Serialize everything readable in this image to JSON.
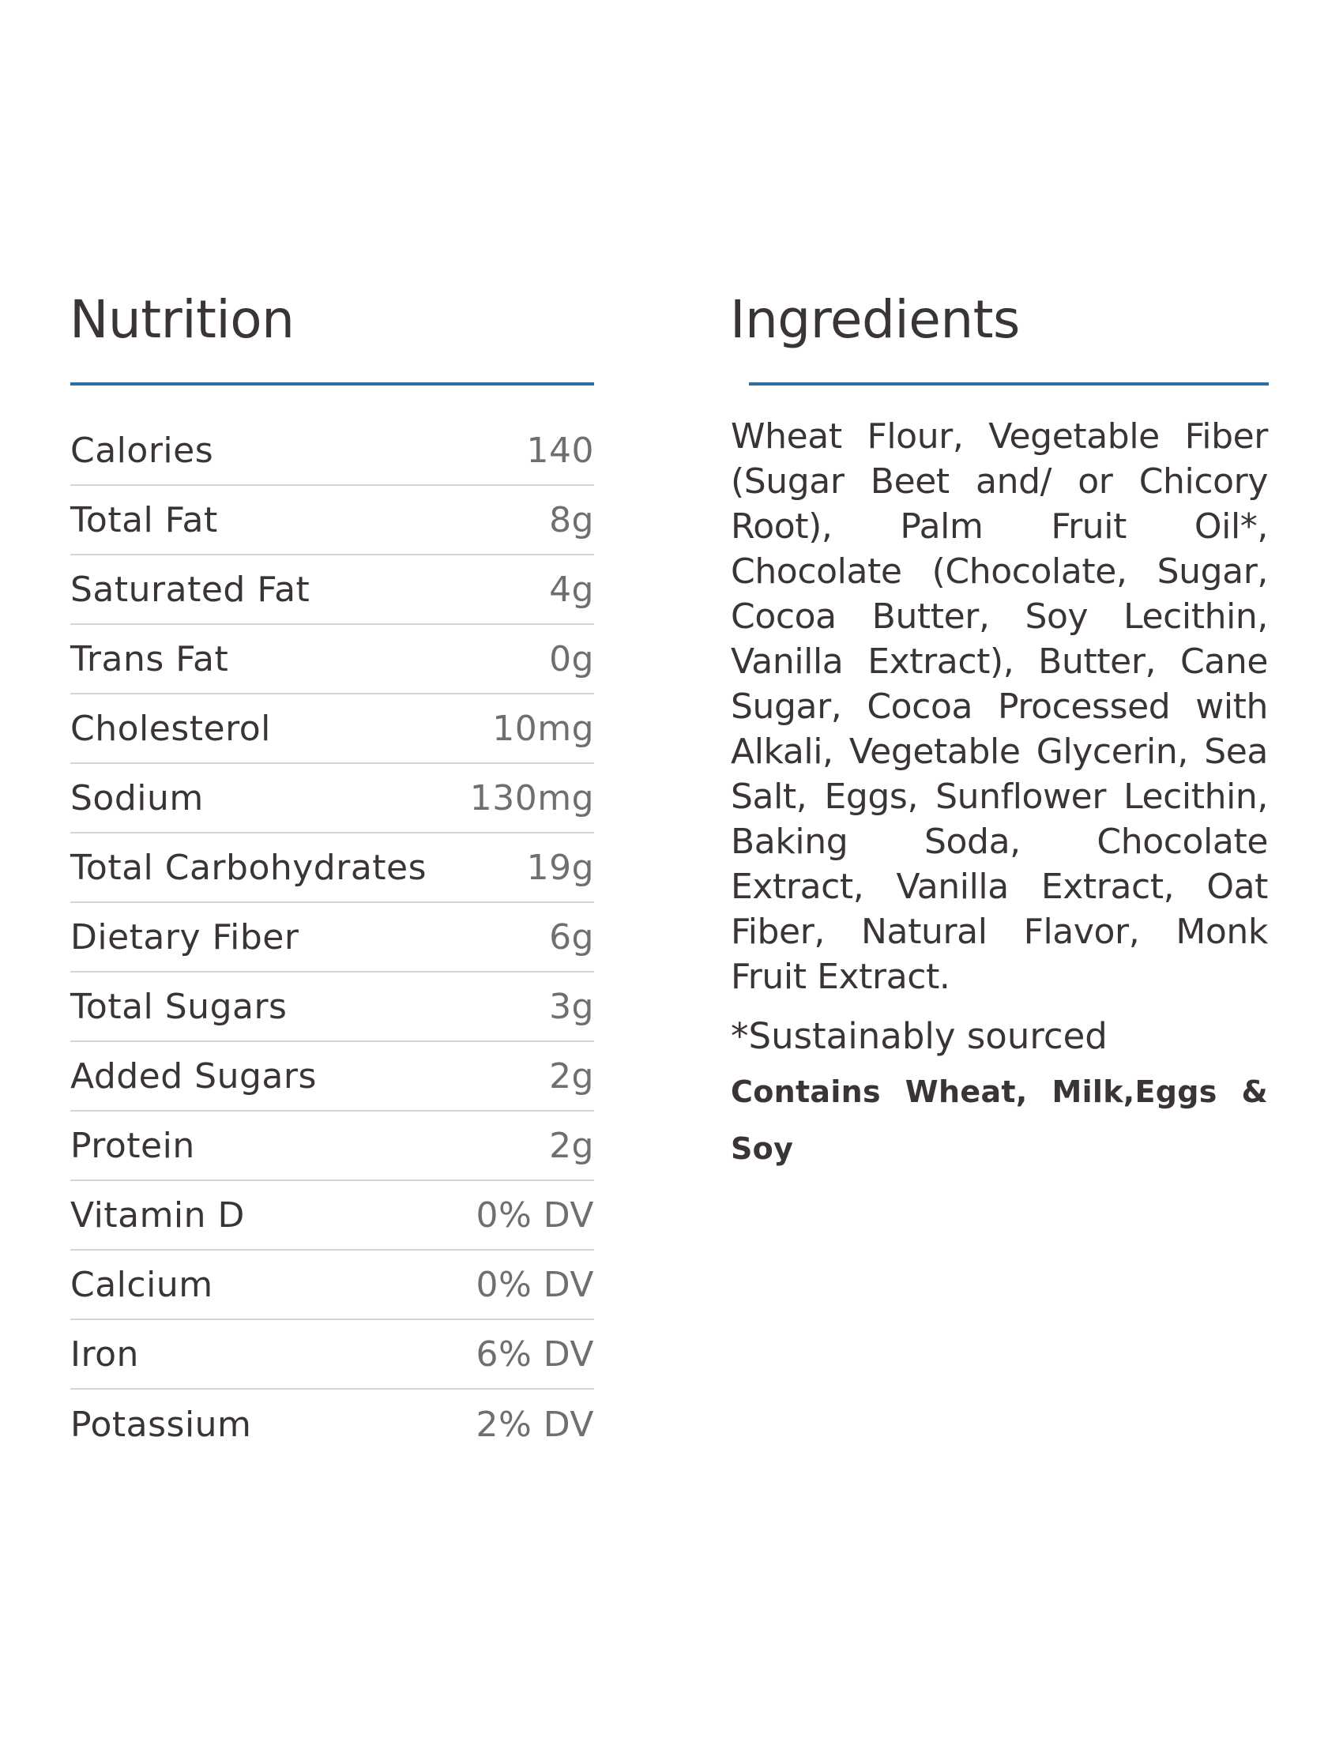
{
  "nutrition": {
    "title": "Nutrition",
    "rows": [
      {
        "label": "Calories",
        "value": "140"
      },
      {
        "label": "Total Fat",
        "value": "8g"
      },
      {
        "label": "Saturated Fat",
        "value": "4g"
      },
      {
        "label": "Trans Fat",
        "value": "0g"
      },
      {
        "label": "Cholesterol",
        "value": "10mg"
      },
      {
        "label": "Sodium",
        "value": "130mg"
      },
      {
        "label": "Total Carbohydrates",
        "value": "19g"
      },
      {
        "label": "Dietary Fiber",
        "value": "6g"
      },
      {
        "label": "Total Sugars",
        "value": "3g"
      },
      {
        "label": "Added Sugars",
        "value": "2g"
      },
      {
        "label": "Protein",
        "value": "2g"
      },
      {
        "label": "Vitamin D",
        "value": "0% DV"
      },
      {
        "label": "Calcium",
        "value": "0% DV"
      },
      {
        "label": "Iron",
        "value": "6% DV"
      },
      {
        "label": "Potassium",
        "value": "2% DV"
      }
    ]
  },
  "ingredients": {
    "title": "Ingredients",
    "text": "Wheat Flour, Vegetable Fiber (Sugar Beet and/ or Chicory Root), Palm Fruit Oil*, Chocolate (Chocolate, Sugar, Cocoa Butter, Soy Lecithin, Vanilla Extract), Butter, Cane Sugar, Cocoa Processed with Alkali, Vegetable Glycerin, Sea Salt, Eggs, Sunflower Lecithin, Baking Soda, Chocolate Extract, Vanilla Extract, Oat Fiber, Natural Flavor, Monk Fruit Extract.",
    "note": "*Sustainably sourced",
    "allergens": "Contains Wheat, Milk,Eggs & Soy"
  },
  "colors": {
    "accent_rule": "#2f6c9e",
    "heading_text": "#3a3435",
    "value_text": "#6f6f6f",
    "row_divider": "#d6d6d6"
  }
}
